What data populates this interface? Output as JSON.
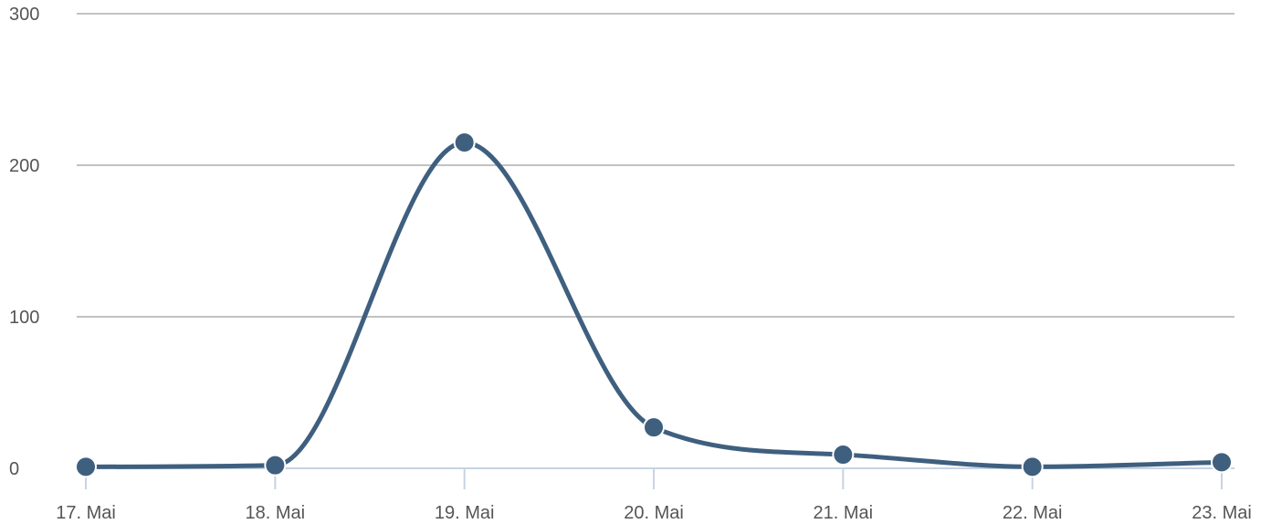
{
  "chart_data": {
    "type": "line",
    "title": "",
    "xlabel": "",
    "ylabel": "",
    "categories": [
      "17. Mai",
      "18. Mai",
      "19. Mai",
      "20. Mai",
      "21. Mai",
      "22. Mai",
      "23. Mai"
    ],
    "series": [
      {
        "values": [
          1,
          2,
          215,
          27,
          9,
          1,
          4
        ],
        "color": "#3f5f7f"
      }
    ],
    "ylim": [
      0,
      300
    ],
    "yticks": [
      0,
      100,
      200,
      300
    ],
    "grid": true,
    "smooth": true,
    "legend": "none"
  }
}
